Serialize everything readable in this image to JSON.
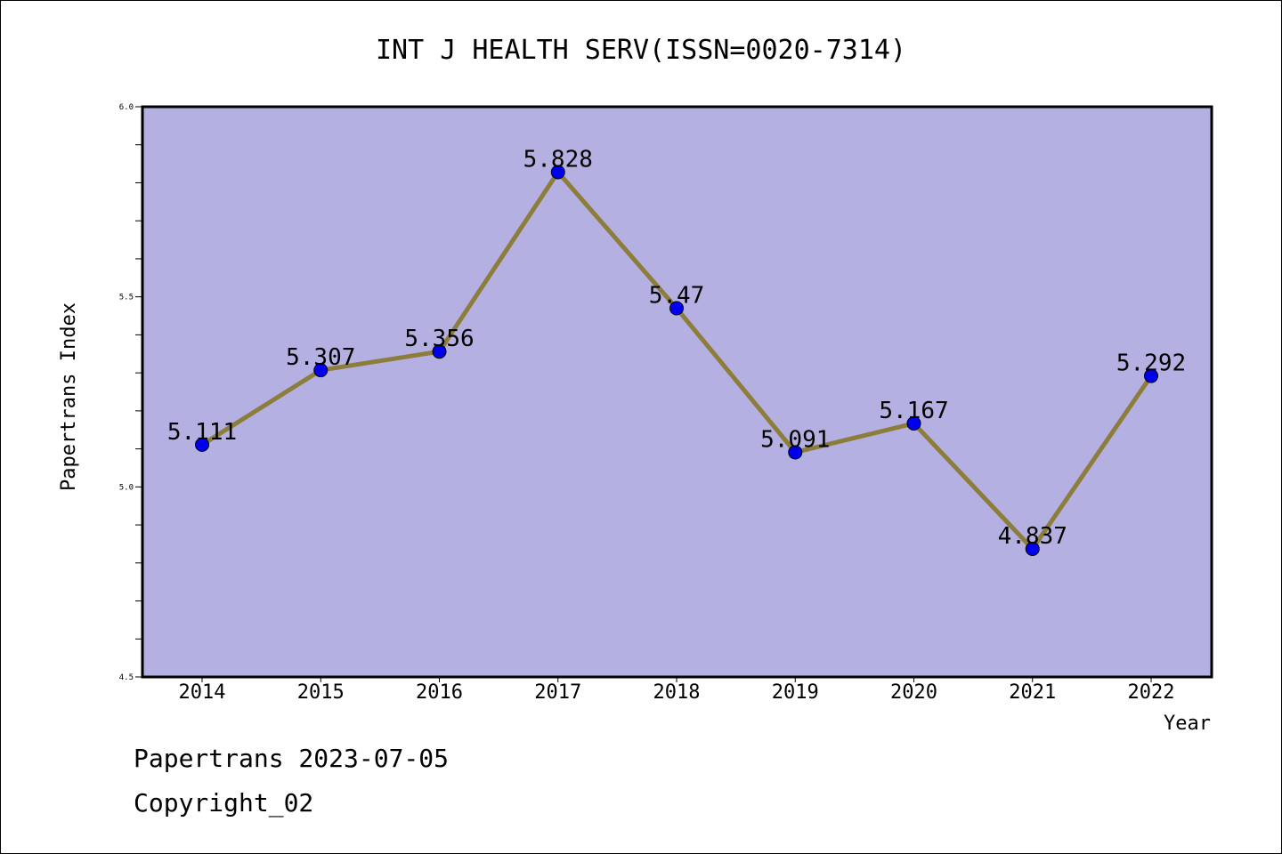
{
  "chart_data": {
    "type": "line",
    "title": "INT J HEALTH SERV(ISSN=0020-7314)",
    "xlabel": "Year",
    "ylabel": "Papertrans Index",
    "categories": [
      "2014",
      "2015",
      "2016",
      "2017",
      "2018",
      "2019",
      "2020",
      "2021",
      "2022"
    ],
    "series": [
      {
        "values": [
          5.111,
          5.307,
          5.356,
          5.828,
          5.47,
          5.091,
          5.167,
          4.837,
          5.292
        ],
        "labels": [
          "5.111",
          "5.307",
          "5.356",
          "5.828",
          "5.47",
          "5.091",
          "5.167",
          "4.837",
          "5.292"
        ]
      }
    ],
    "ylim": [
      4.5,
      6.0
    ],
    "yticks": [
      {
        "value": 4.5,
        "label": "4.5"
      },
      {
        "value": 5.0,
        "label": "5.0"
      },
      {
        "value": 5.5,
        "label": "5.5"
      },
      {
        "value": 6.0,
        "label": "6.0"
      }
    ],
    "grid": false,
    "colors": {
      "plot_background": "#b5b0e2",
      "line": "#8c7d3b",
      "marker": "#0000ee"
    }
  },
  "footer": {
    "line1": "Papertrans 2023-07-05",
    "line2": "Copyright_02"
  }
}
